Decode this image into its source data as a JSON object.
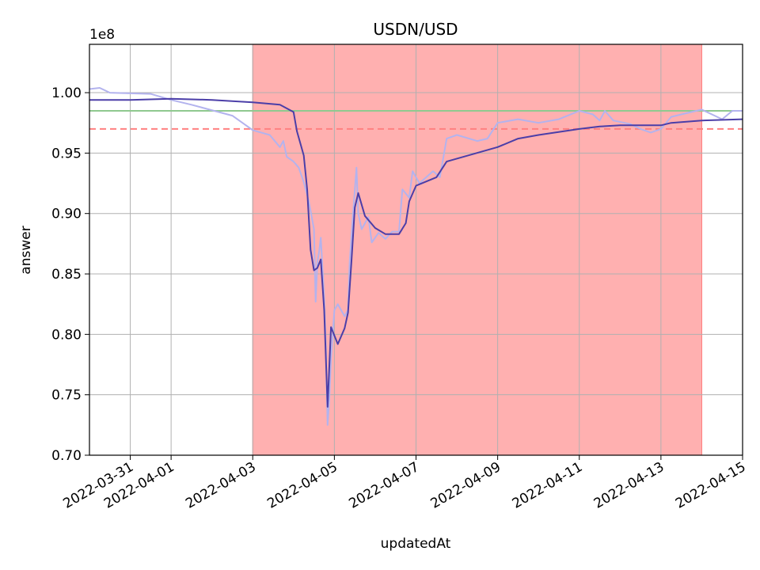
{
  "chart_data": {
    "type": "line",
    "title": "USDN/USD",
    "xlabel": "updatedAt",
    "ylabel": "answer",
    "y_offset_label": "1e8",
    "xlim": [
      "2022-03-30",
      "2022-04-15"
    ],
    "ylim": [
      0.7,
      1.04
    ],
    "y_scale_factor": 100000000,
    "grid": true,
    "x_ticks": [
      "2022-03-31",
      "2022-04-01",
      "2022-04-03",
      "2022-04-05",
      "2022-04-07",
      "2022-04-09",
      "2022-04-11",
      "2022-04-13",
      "2022-04-15"
    ],
    "y_ticks": [
      0.7,
      0.75,
      0.8,
      0.85,
      0.9,
      0.95,
      1.0
    ],
    "y_tick_labels": [
      "0.70",
      "0.75",
      "0.80",
      "0.85",
      "0.90",
      "0.95",
      "1.00"
    ],
    "shaded_region": {
      "x_start": "2022-04-03",
      "x_end": "2022-04-14",
      "color": "#ffb0b0"
    },
    "reference_lines": [
      {
        "y": 0.985,
        "style": "solid",
        "color": "#8fc98f"
      },
      {
        "y": 0.97,
        "style": "dashed",
        "color": "#ff8080"
      }
    ],
    "series": [
      {
        "color": "#b3b3ee",
        "width": 2,
        "points": [
          [
            "2022-03-30",
            1.003
          ],
          [
            "2022-03-30T06:00",
            1.004
          ],
          [
            "2022-03-30T12:00",
            1.0
          ],
          [
            "2022-03-31T12:00",
            0.999
          ],
          [
            "2022-04-01",
            0.994
          ],
          [
            "2022-04-01T12:00",
            0.99
          ],
          [
            "2022-04-02T12:00",
            0.981
          ],
          [
            "2022-04-03",
            0.969
          ],
          [
            "2022-04-03T10:00",
            0.965
          ],
          [
            "2022-04-03T16:00",
            0.955
          ],
          [
            "2022-04-03T18:00",
            0.96
          ],
          [
            "2022-04-03T20:00",
            0.947
          ],
          [
            "2022-04-04",
            0.943
          ],
          [
            "2022-04-04T03:00",
            0.938
          ],
          [
            "2022-04-04T06:00",
            0.926
          ],
          [
            "2022-04-04T09:00",
            0.91
          ],
          [
            "2022-04-04T12:00",
            0.887
          ],
          [
            "2022-04-04T13:00",
            0.827
          ],
          [
            "2022-04-04T14:00",
            0.86
          ],
          [
            "2022-04-04T15:00",
            0.868
          ],
          [
            "2022-04-04T16:00",
            0.88
          ],
          [
            "2022-04-04T18:00",
            0.83
          ],
          [
            "2022-04-04T19:00",
            0.79
          ],
          [
            "2022-04-04T20:00",
            0.725
          ],
          [
            "2022-04-04T21:00",
            0.745
          ],
          [
            "2022-04-04T22:00",
            0.78
          ],
          [
            "2022-04-05",
            0.82
          ],
          [
            "2022-04-05T02:00",
            0.825
          ],
          [
            "2022-04-05T06:00",
            0.815
          ],
          [
            "2022-04-05T08:00",
            0.82
          ],
          [
            "2022-04-05T09:00",
            0.86
          ],
          [
            "2022-04-05T11:00",
            0.9
          ],
          [
            "2022-04-05T13:00",
            0.938
          ],
          [
            "2022-04-05T14:00",
            0.9
          ],
          [
            "2022-04-05T16:00",
            0.887
          ],
          [
            "2022-04-05T20:00",
            0.897
          ],
          [
            "2022-04-05T22:00",
            0.876
          ],
          [
            "2022-04-06T02:00",
            0.884
          ],
          [
            "2022-04-06T06:00",
            0.879
          ],
          [
            "2022-04-06T10:00",
            0.885
          ],
          [
            "2022-04-06T14:00",
            0.885
          ],
          [
            "2022-04-06T16:00",
            0.92
          ],
          [
            "2022-04-06T20:00",
            0.913
          ],
          [
            "2022-04-06T22:00",
            0.935
          ],
          [
            "2022-04-07T02:00",
            0.925
          ],
          [
            "2022-04-07T06:00",
            0.93
          ],
          [
            "2022-04-07T10:00",
            0.935
          ],
          [
            "2022-04-07T14:00",
            0.93
          ],
          [
            "2022-04-07T18:00",
            0.962
          ],
          [
            "2022-04-08",
            0.965
          ],
          [
            "2022-04-08T12:00",
            0.96
          ],
          [
            "2022-04-08T18:00",
            0.962
          ],
          [
            "2022-04-09",
            0.975
          ],
          [
            "2022-04-09T12:00",
            0.978
          ],
          [
            "2022-04-10",
            0.975
          ],
          [
            "2022-04-10T12:00",
            0.978
          ],
          [
            "2022-04-11",
            0.985
          ],
          [
            "2022-04-11T08:00",
            0.982
          ],
          [
            "2022-04-11T12:00",
            0.977
          ],
          [
            "2022-04-11T15:00",
            0.985
          ],
          [
            "2022-04-11T20:00",
            0.977
          ],
          [
            "2022-04-12T06:00",
            0.974
          ],
          [
            "2022-04-12T12:00",
            0.97
          ],
          [
            "2022-04-12T18:00",
            0.967
          ],
          [
            "2022-04-13",
            0.97
          ],
          [
            "2022-04-13T06:00",
            0.98
          ],
          [
            "2022-04-13T12:00",
            0.982
          ],
          [
            "2022-04-14",
            0.986
          ],
          [
            "2022-04-14T12:00",
            0.978
          ],
          [
            "2022-04-14T18:00",
            0.985
          ],
          [
            "2022-04-15",
            0.985
          ]
        ]
      },
      {
        "color": "#4b3ea8",
        "width": 2,
        "points": [
          [
            "2022-03-30",
            0.994
          ],
          [
            "2022-03-31",
            0.994
          ],
          [
            "2022-04-01",
            0.995
          ],
          [
            "2022-04-02",
            0.994
          ],
          [
            "2022-04-03",
            0.992
          ],
          [
            "2022-04-03T16:00",
            0.99
          ],
          [
            "2022-04-04",
            0.984
          ],
          [
            "2022-04-04T02:00",
            0.968
          ],
          [
            "2022-04-04T06:00",
            0.948
          ],
          [
            "2022-04-04T08:00",
            0.92
          ],
          [
            "2022-04-04T10:00",
            0.87
          ],
          [
            "2022-04-04T12:00",
            0.853
          ],
          [
            "2022-04-04T14:00",
            0.855
          ],
          [
            "2022-04-04T16:00",
            0.862
          ],
          [
            "2022-04-04T18:00",
            0.82
          ],
          [
            "2022-04-04T20:00",
            0.74
          ],
          [
            "2022-04-04T22:00",
            0.806
          ],
          [
            "2022-04-05T02:00",
            0.792
          ],
          [
            "2022-04-05T06:00",
            0.805
          ],
          [
            "2022-04-05T08:00",
            0.818
          ],
          [
            "2022-04-05T10:00",
            0.86
          ],
          [
            "2022-04-05T12:00",
            0.905
          ],
          [
            "2022-04-05T14:00",
            0.917
          ],
          [
            "2022-04-05T18:00",
            0.898
          ],
          [
            "2022-04-06",
            0.888
          ],
          [
            "2022-04-06T06:00",
            0.883
          ],
          [
            "2022-04-06T14:00",
            0.883
          ],
          [
            "2022-04-06T18:00",
            0.892
          ],
          [
            "2022-04-06T20:00",
            0.91
          ],
          [
            "2022-04-07",
            0.923
          ],
          [
            "2022-04-07T12:00",
            0.93
          ],
          [
            "2022-04-07T18:00",
            0.943
          ],
          [
            "2022-04-09",
            0.955
          ],
          [
            "2022-04-09T12:00",
            0.962
          ],
          [
            "2022-04-10",
            0.965
          ],
          [
            "2022-04-11",
            0.97
          ],
          [
            "2022-04-11T12:00",
            0.972
          ],
          [
            "2022-04-12",
            0.973
          ],
          [
            "2022-04-13",
            0.973
          ],
          [
            "2022-04-13T06:00",
            0.975
          ],
          [
            "2022-04-14",
            0.977
          ],
          [
            "2022-04-15",
            0.978
          ]
        ]
      }
    ]
  }
}
